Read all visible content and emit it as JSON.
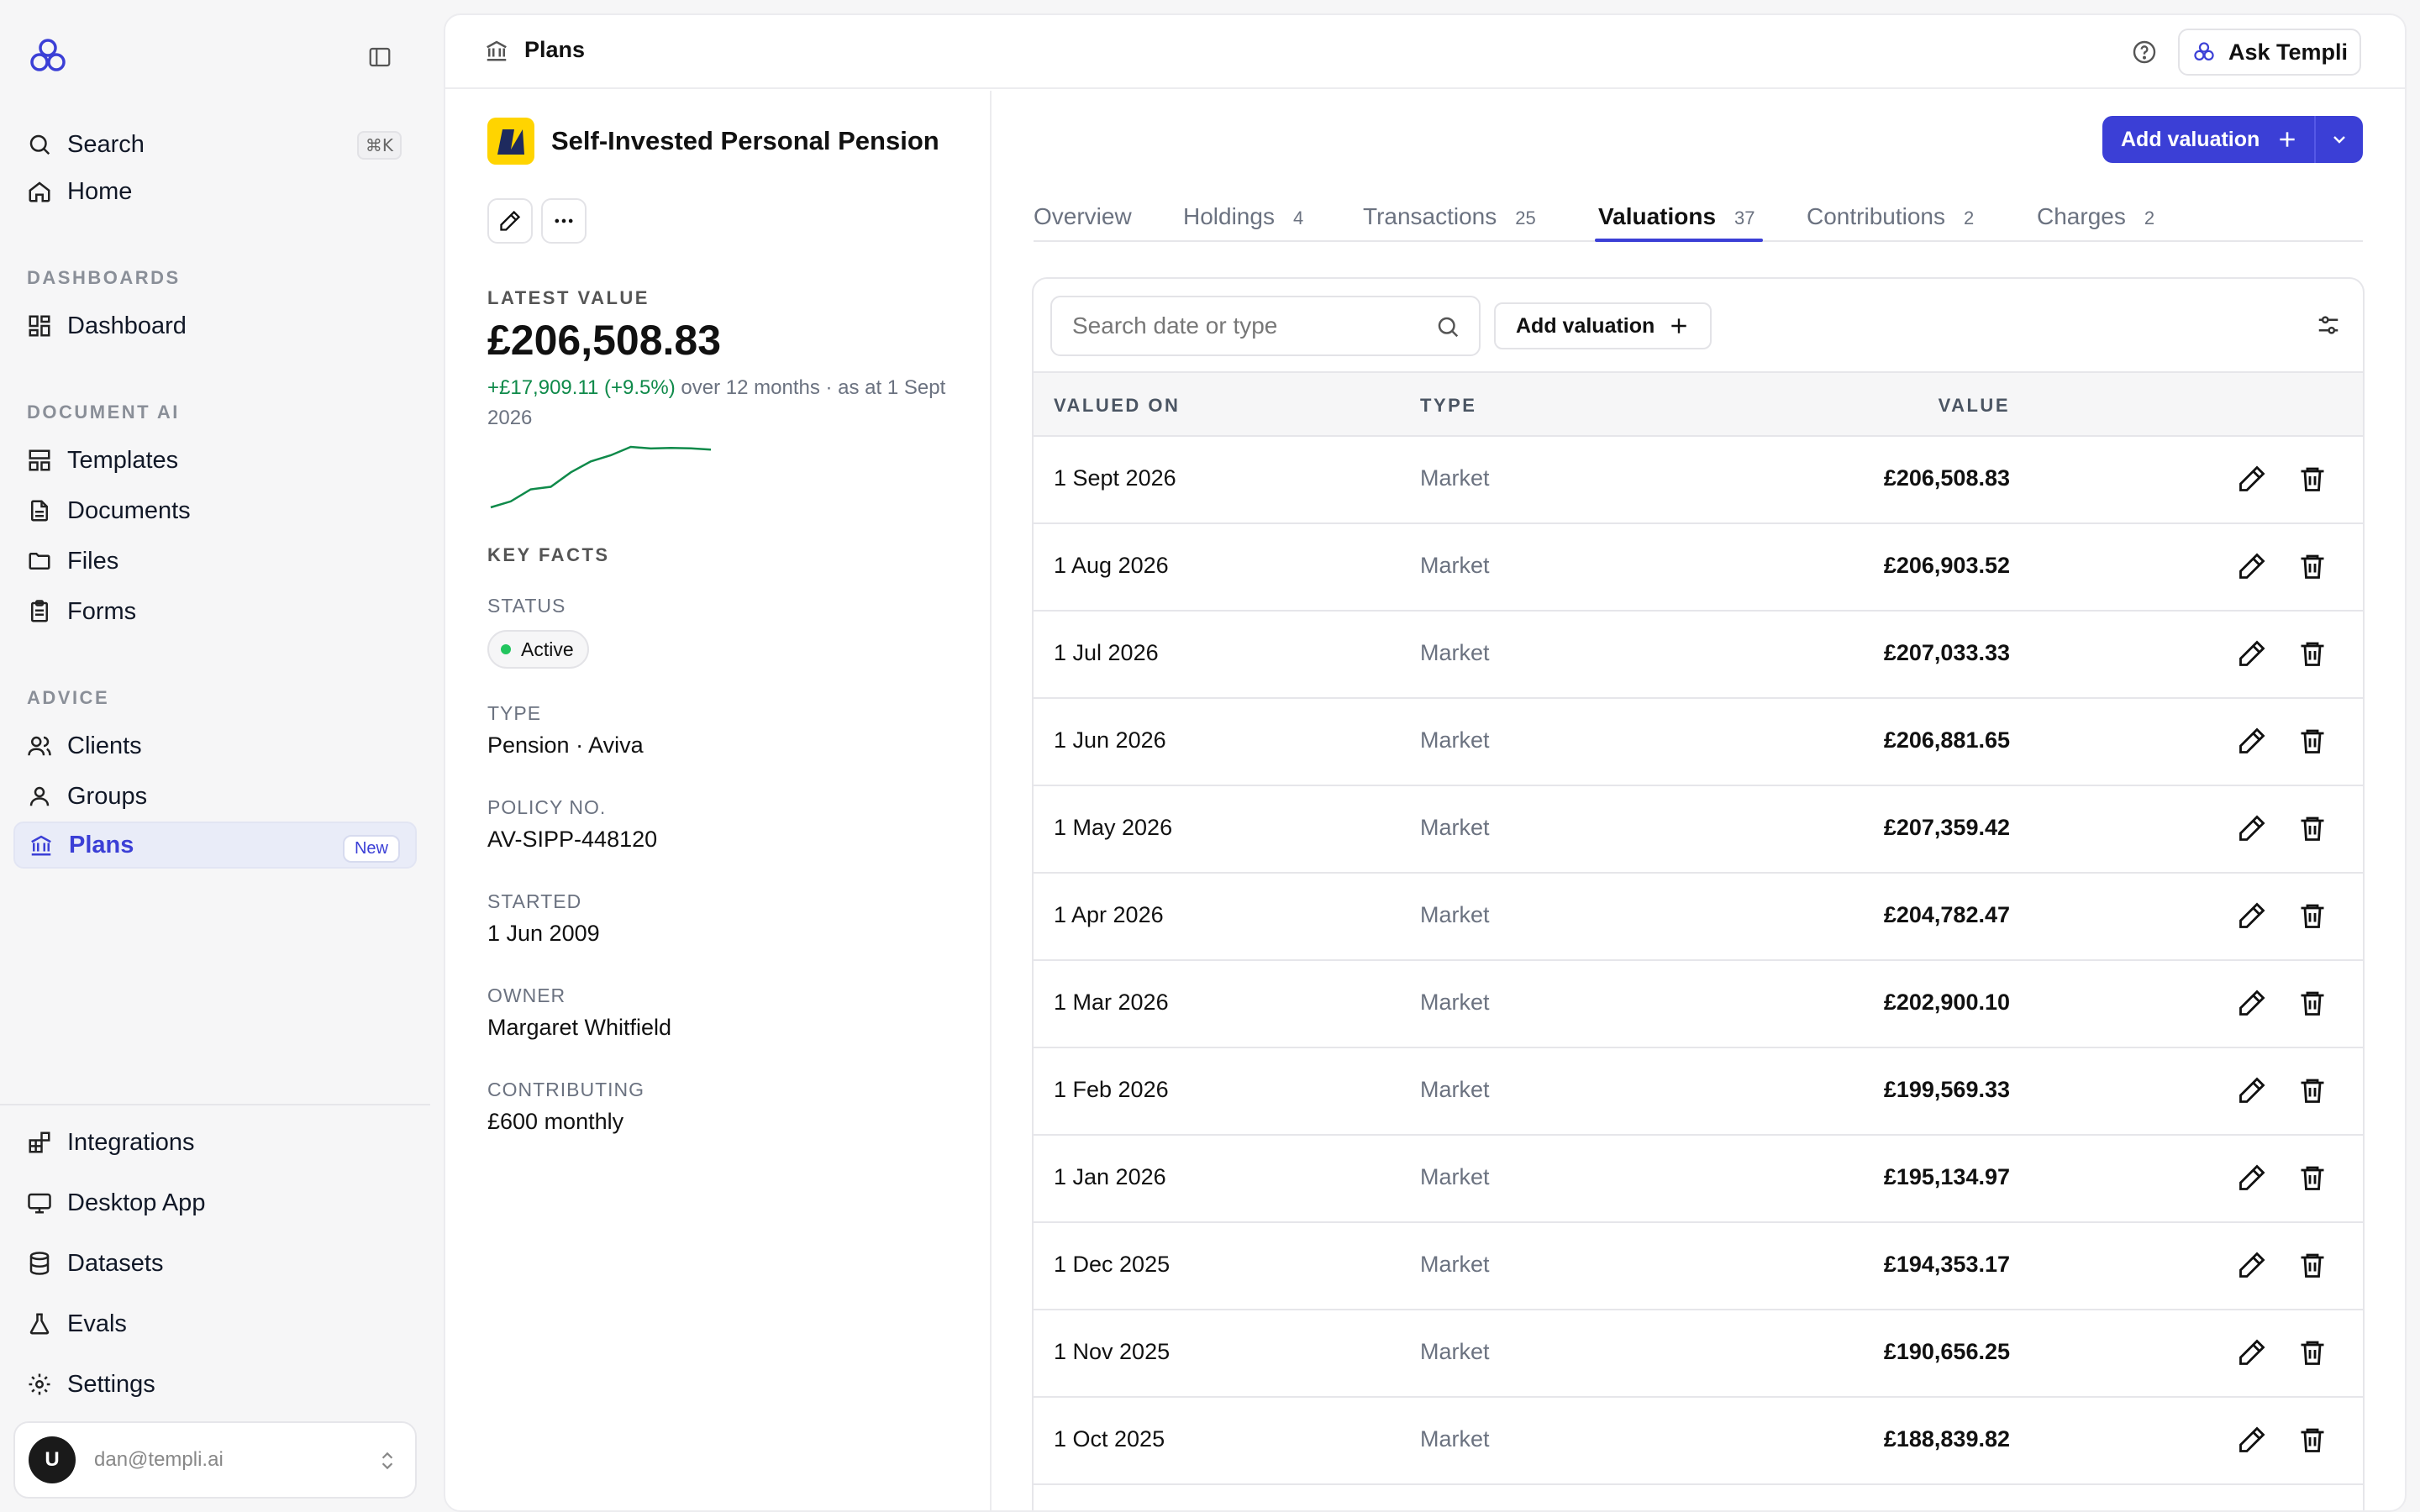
{
  "sidebar": {
    "search": {
      "label": "Search",
      "shortcut": "⌘K"
    },
    "home": {
      "label": "Home"
    },
    "sections": {
      "dashboards": "DASHBOARDS",
      "document_ai": "DOCUMENT AI",
      "advice": "ADVICE"
    },
    "items": {
      "dashboard": "Dashboard",
      "templates": "Templates",
      "documents": "Documents",
      "files": "Files",
      "forms": "Forms",
      "clients": "Clients",
      "groups": "Groups",
      "plans": "Plans",
      "plans_badge": "New"
    },
    "bottom": {
      "integrations": "Integrations",
      "desktop_app": "Desktop App",
      "datasets": "Datasets",
      "evals": "Evals",
      "settings": "Settings"
    },
    "user": {
      "initial": "U",
      "email": "dan@templi.ai"
    }
  },
  "topbar": {
    "breadcrumb": "Plans",
    "ask_label": "Ask Templi"
  },
  "plan": {
    "title": "Self-Invested Personal Pension",
    "latest_value_label": "LATEST VALUE",
    "latest_value": "£206,508.83",
    "change_amount": "+£17,909.11 (+9.5%)",
    "change_suffix": "over 12 months · as at 1 Sept 2026",
    "key_facts_label": "KEY FACTS",
    "facts": {
      "status_label": "STATUS",
      "status": "Active",
      "type_label": "TYPE",
      "type": "Pension · Aviva",
      "policy_label": "POLICY NO.",
      "policy": "AV-SIPP-448120",
      "started_label": "STARTED",
      "started": "1 Jun 2009",
      "owner_label": "OWNER",
      "owner": "Margaret Whitfield",
      "contributing_label": "CONTRIBUTING",
      "contributing": "£600 monthly"
    },
    "sparkline_values": [
      188839.82,
      190656.25,
      194353.17,
      195134.97,
      199569.33,
      202900.1,
      204782.47,
      207359.42,
      206881.65,
      207033.33,
      206903.52,
      206508.83
    ],
    "colors": {
      "positive": "#0f8a4a",
      "accent": "#3b3fd6",
      "status": "#22c55e",
      "logo_bg": "#ffd400"
    }
  },
  "actions": {
    "add_valuation": "Add valuation"
  },
  "tabs": [
    {
      "label": "Overview",
      "count": ""
    },
    {
      "label": "Holdings",
      "count": "4"
    },
    {
      "label": "Transactions",
      "count": "25"
    },
    {
      "label": "Valuations",
      "count": "37"
    },
    {
      "label": "Contributions",
      "count": "2"
    },
    {
      "label": "Charges",
      "count": "2"
    }
  ],
  "table": {
    "search_placeholder": "Search date or type",
    "add_label": "Add valuation",
    "headers": {
      "date": "VALUED ON",
      "type": "TYPE",
      "value": "VALUE"
    },
    "rows": [
      {
        "date": "1 Sept 2026",
        "type": "Market",
        "value": "£206,508.83"
      },
      {
        "date": "1 Aug 2026",
        "type": "Market",
        "value": "£206,903.52"
      },
      {
        "date": "1 Jul 2026",
        "type": "Market",
        "value": "£207,033.33"
      },
      {
        "date": "1 Jun 2026",
        "type": "Market",
        "value": "£206,881.65"
      },
      {
        "date": "1 May 2026",
        "type": "Market",
        "value": "£207,359.42"
      },
      {
        "date": "1 Apr 2026",
        "type": "Market",
        "value": "£204,782.47"
      },
      {
        "date": "1 Mar 2026",
        "type": "Market",
        "value": "£202,900.10"
      },
      {
        "date": "1 Feb 2026",
        "type": "Market",
        "value": "£199,569.33"
      },
      {
        "date": "1 Jan 2026",
        "type": "Market",
        "value": "£195,134.97"
      },
      {
        "date": "1 Dec 2025",
        "type": "Market",
        "value": "£194,353.17"
      },
      {
        "date": "1 Nov 2025",
        "type": "Market",
        "value": "£190,656.25"
      },
      {
        "date": "1 Oct 2025",
        "type": "Market",
        "value": "£188,839.82"
      }
    ]
  }
}
